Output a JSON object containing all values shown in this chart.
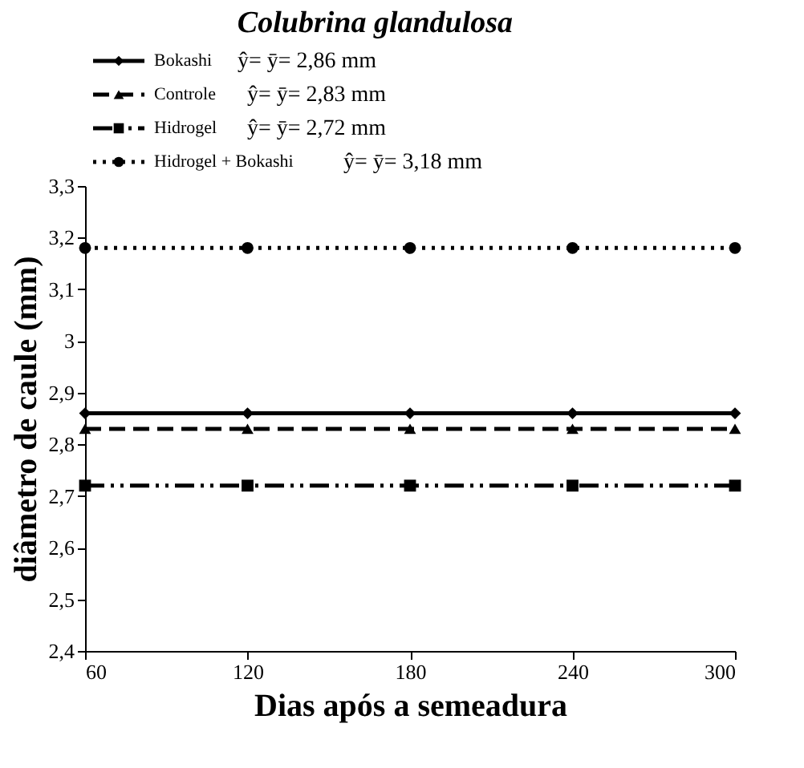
{
  "chart_data": {
    "type": "line",
    "title": "Colubrina glandulosa",
    "xlabel": "Dias após a semeadura",
    "ylabel": "diâmetro de caule (mm)",
    "x": [
      60,
      120,
      180,
      240,
      300
    ],
    "series": [
      {
        "name": "Bokashi",
        "color": "#000000",
        "marker": "diamond",
        "line_style": "solid",
        "values": [
          2.86,
          2.86,
          2.86,
          2.86,
          2.86
        ]
      },
      {
        "name": "Controle",
        "color": "#000000",
        "marker": "triangle",
        "line_style": "dashed",
        "values": [
          2.83,
          2.83,
          2.83,
          2.83,
          2.83
        ]
      },
      {
        "name": "Hidrogel",
        "color": "#000000",
        "marker": "square",
        "line_style": "dashdotdot",
        "values": [
          2.72,
          2.72,
          2.72,
          2.72,
          2.72
        ]
      },
      {
        "name": "Hidrogel + Bokashi",
        "color": "#000000",
        "marker": "circle",
        "line_style": "dotted",
        "values": [
          3.18,
          3.18,
          3.18,
          3.18,
          3.18
        ]
      }
    ],
    "annotations": [
      "ŷ= ȳ= 2,86 mm",
      "ŷ= ȳ= 2,83 mm",
      "ŷ= ȳ= 2,72 mm",
      "ŷ= ȳ= 3,18 mm"
    ],
    "xlim": [
      60,
      300
    ],
    "xticks": [
      60,
      120,
      180,
      240,
      300
    ],
    "ylim": [
      2.4,
      3.3
    ],
    "yticks": [
      {
        "value": 2.4,
        "label": "2,4"
      },
      {
        "value": 2.5,
        "label": "2,5"
      },
      {
        "value": 2.6,
        "label": "2,6"
      },
      {
        "value": 2.7,
        "label": "2,7"
      },
      {
        "value": 2.8,
        "label": "2,8"
      },
      {
        "value": 2.9,
        "label": "2,9"
      },
      {
        "value": 3,
        "label": "3"
      },
      {
        "value": 3.1,
        "label": "3,1"
      },
      {
        "value": 3.2,
        "label": "3,2"
      },
      {
        "value": 3.3,
        "label": "3,3"
      }
    ],
    "grid": false,
    "legend": "top left"
  }
}
